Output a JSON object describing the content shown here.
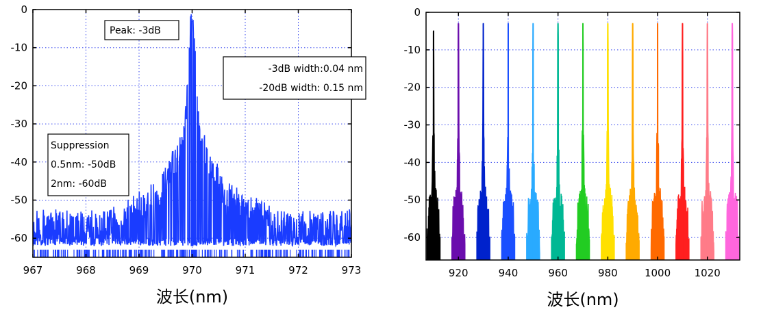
{
  "chart_data": [
    {
      "type": "line",
      "xlabel": "波长(nm)",
      "ylabel": "",
      "xlim": [
        967,
        973
      ],
      "ylim": [
        -65,
        0
      ],
      "xticks": [
        "967",
        "968",
        "969",
        "970",
        "971",
        "972",
        "973"
      ],
      "yticks": [
        "0",
        "-10",
        "-20",
        "-30",
        "-40",
        "-50",
        "-60"
      ],
      "grid": true,
      "series": [
        {
          "color": "#1a3cff",
          "peak_x": 970.0,
          "peak_y": -3,
          "noise_floor": -62,
          "points": [
            [
              967.0,
              -62
            ],
            [
              967.5,
              -61
            ],
            [
              968.0,
              -62
            ],
            [
              968.5,
              -60
            ],
            [
              969.0,
              -58
            ],
            [
              969.3,
              -56
            ],
            [
              969.6,
              -50
            ],
            [
              969.8,
              -40
            ],
            [
              969.9,
              -25
            ],
            [
              969.95,
              -12
            ],
            [
              970.0,
              -3
            ],
            [
              970.05,
              -12
            ],
            [
              970.1,
              -25
            ],
            [
              970.2,
              -40
            ],
            [
              970.4,
              -50
            ],
            [
              970.7,
              -55
            ],
            [
              971.0,
              -58
            ],
            [
              971.5,
              -60
            ],
            [
              972.0,
              -61
            ],
            [
              972.5,
              -62
            ],
            [
              973.0,
              -62
            ]
          ]
        }
      ],
      "annotations": {
        "peak": "Peak: -3dB",
        "width_lines": [
          "-3dB width:0.04 nm",
          "-20dB width: 0.15 nm"
        ],
        "suppression_lines": [
          "Suppression",
          "0.5nm: -50dB",
          "2nm: -60dB"
        ]
      }
    },
    {
      "type": "line",
      "xlabel": "波长(nm)",
      "ylabel": "",
      "xlim": [
        907,
        1033
      ],
      "ylim": [
        -66,
        0
      ],
      "xticks": [
        "920",
        "940",
        "960",
        "980",
        "1000",
        "1020"
      ],
      "yticks": [
        "0",
        "-10",
        "-20",
        "-30",
        "-40",
        "-50",
        "-60"
      ],
      "grid": true,
      "series": [
        {
          "peak_x": 910,
          "peak_y": -5,
          "color": "#000000"
        },
        {
          "peak_x": 920,
          "peak_y": -3,
          "color": "#6a0dad"
        },
        {
          "peak_x": 930,
          "peak_y": -3,
          "color": "#0022cc"
        },
        {
          "peak_x": 940,
          "peak_y": -3,
          "color": "#1a4fff"
        },
        {
          "peak_x": 950,
          "peak_y": -3,
          "color": "#29aaff"
        },
        {
          "peak_x": 960,
          "peak_y": -3,
          "color": "#00b894"
        },
        {
          "peak_x": 970,
          "peak_y": -3,
          "color": "#22cc22"
        },
        {
          "peak_x": 980,
          "peak_y": -3,
          "color": "#ffe000"
        },
        {
          "peak_x": 990,
          "peak_y": -3,
          "color": "#ffaa00"
        },
        {
          "peak_x": 1000,
          "peak_y": -3,
          "color": "#ff6a00"
        },
        {
          "peak_x": 1010,
          "peak_y": -3,
          "color": "#ff1f1f"
        },
        {
          "peak_x": 1020,
          "peak_y": -3,
          "color": "#ff7b88"
        },
        {
          "peak_x": 1030,
          "peak_y": -3,
          "color": "#ff66dd"
        }
      ]
    }
  ]
}
